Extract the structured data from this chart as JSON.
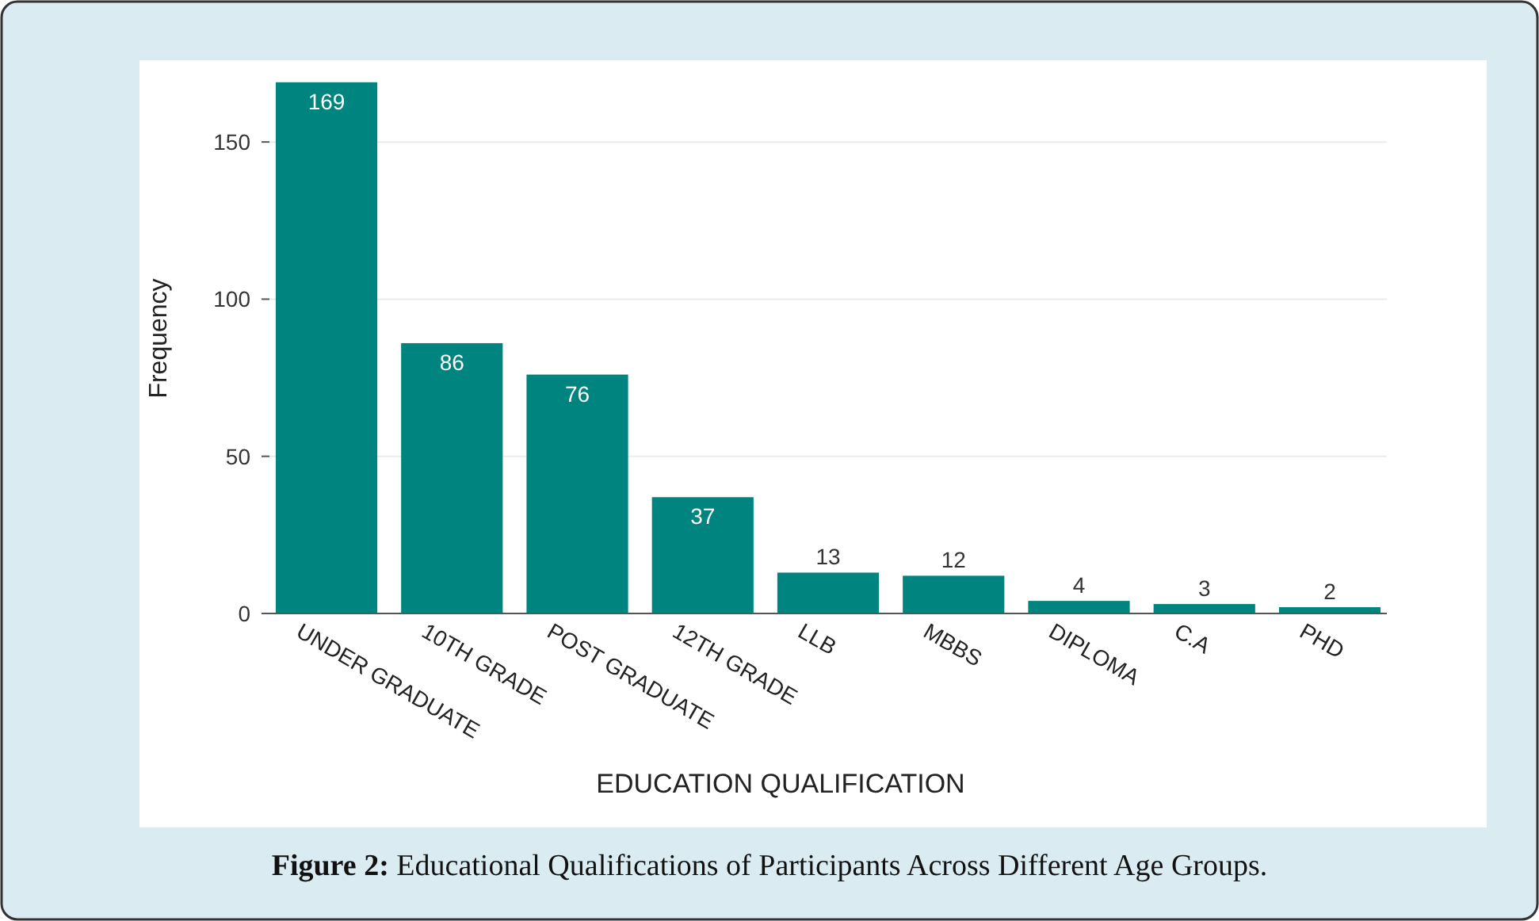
{
  "chart_data": {
    "type": "bar",
    "categories": [
      "UNDER GRADUATE",
      "10TH GRADE",
      "POST GRADUATE",
      "12TH GRADE",
      "LLB",
      "MBBS",
      "DIPLOMA",
      "C.A",
      "PHD"
    ],
    "values": [
      169,
      86,
      76,
      37,
      13,
      12,
      4,
      3,
      2
    ],
    "color": "#00847f",
    "xlabel": "EDUCATION QUALIFICATION",
    "ylabel": "Frequency",
    "ylim": [
      0,
      175
    ],
    "yticks": [
      0,
      50,
      100,
      150
    ],
    "grid": "y",
    "data_labels": true,
    "annotations": [
      "Figure 2: Educational Qualifications of Participants Across Different Age Groups."
    ]
  }
}
